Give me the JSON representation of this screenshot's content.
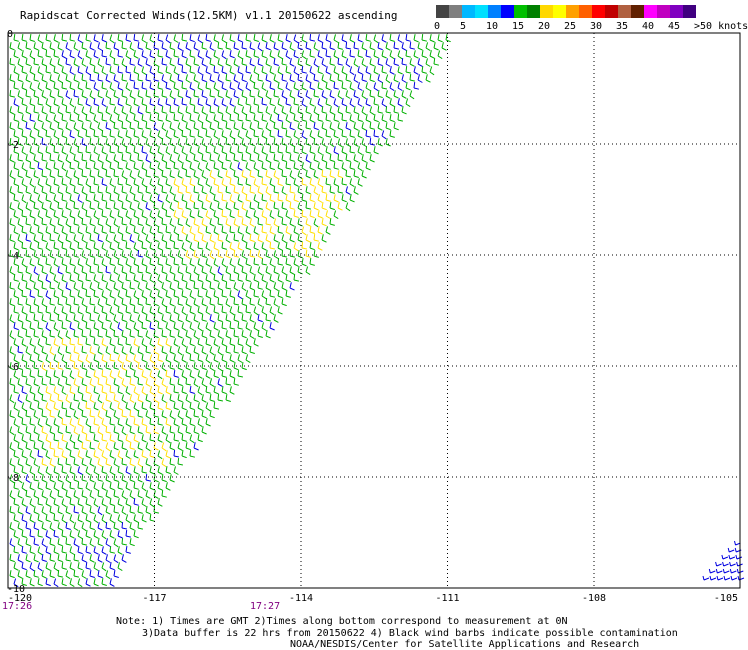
{
  "title": "Rapidscat Corrected Winds(12.5KM) v1.1 20150622 ascending",
  "legend": {
    "colors": [
      "#444444",
      "#7f7f7f",
      "#00b8ff",
      "#00e0ff",
      "#0080ff",
      "#0000ff",
      "#00c000",
      "#008000",
      "#ffd800",
      "#ffff00",
      "#ffa000",
      "#ff6000",
      "#ff0000",
      "#c00000",
      "#b06040",
      "#602000",
      "#ff00ff",
      "#c000c0",
      "#8000c0",
      "#400080"
    ],
    "labels": [
      "0",
      "5",
      "10",
      "15",
      "20",
      "25",
      "30",
      "35",
      "40",
      "45",
      ">50 knots"
    ]
  },
  "map": {
    "lon_labels": [
      "-120",
      "-117",
      "-114",
      "-111",
      "-108",
      "-105"
    ],
    "lat_labels": [
      "0",
      "-2",
      "-4",
      "-6",
      "-8",
      "-10"
    ],
    "time_labels": [
      "17:26",
      "17:27"
    ]
  },
  "notes": {
    "line1": "Note: 1) Times are GMT 2)Times along bottom correspond to measurement at 0N",
    "line2": "3)Data buffer is 22 hrs from 20150622 4) Black wind barbs indicate possible contamination",
    "line3": "NOAA/NESDIS/Center for Satellite Applications and Research"
  }
}
